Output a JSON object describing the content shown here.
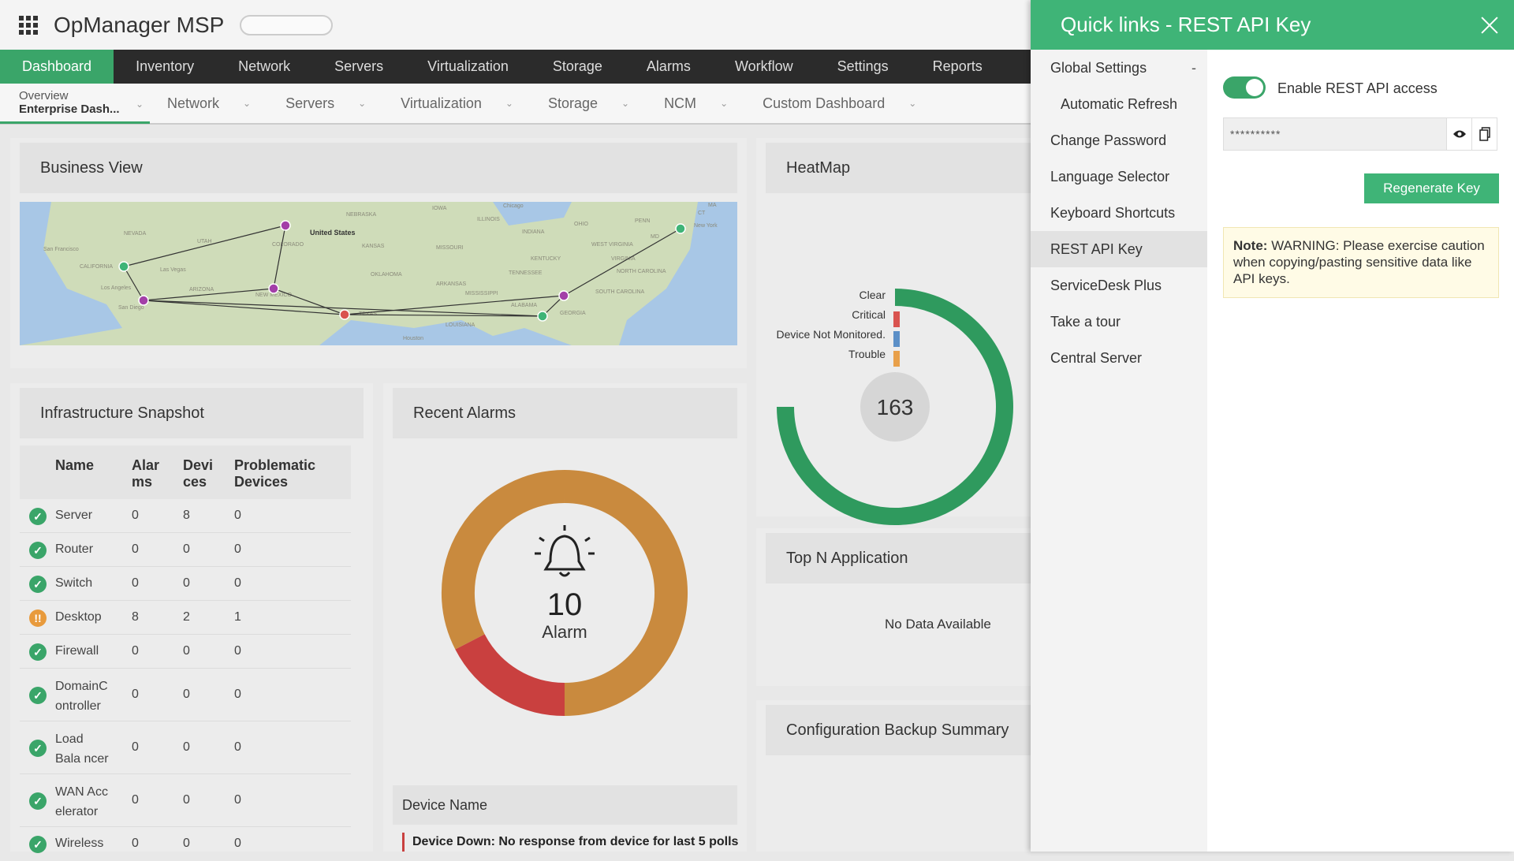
{
  "app": {
    "title": "OpManager MSP"
  },
  "mainnav": [
    "Dashboard",
    "Inventory",
    "Network",
    "Servers",
    "Virtualization",
    "Storage",
    "Alarms",
    "Workflow",
    "Settings",
    "Reports"
  ],
  "subnav": {
    "overview_line1": "Overview",
    "overview_line2": "Enterprise Dash...",
    "items": [
      "Network",
      "Servers",
      "Virtualization",
      "Storage",
      "NCM",
      "Custom Dashboard"
    ]
  },
  "business_view": {
    "title": "Business View",
    "map_labels": [
      "NEVADA",
      "UTAH",
      "NEBRASKA",
      "IOWA",
      "Chicago",
      "ILLINOIS",
      "INDIANA",
      "OHIO",
      "PENN",
      "MA",
      "CT",
      "New York",
      "MD",
      "WEST VIRGINIA",
      "VIRGINIA",
      "KENTUCKY",
      "NORTH CAROLINA",
      "TENNESSEE",
      "SOUTH CAROLINA",
      "GEORGIA",
      "ALABAMA",
      "MISSISSIPPI",
      "ARKANSAS",
      "OKLAHOMA",
      "KANSAS",
      "MISSOURI",
      "United States",
      "COLORADO",
      "NEW MEXICO",
      "ARIZONA",
      "CALIFORNIA",
      "San Francisco",
      "Los Angeles",
      "San Diego",
      "Las Vegas",
      "TEXAS",
      "LOUISIANA",
      "Houston"
    ]
  },
  "heatmap": {
    "title": "HeatMap",
    "legend": [
      "Clear",
      "Critical",
      "Device Not Monitored.",
      "Trouble"
    ],
    "total": "163",
    "colors": {
      "clear": "#2f9a5e",
      "critical": "#d9534f",
      "not_monitored": "#5b8fc7",
      "trouble": "#e8a04a"
    }
  },
  "infra": {
    "title": "Infrastructure Snapshot",
    "headers": {
      "name": "Name",
      "alarms": "Alar ms",
      "devices": "Devi ces",
      "problematic": "Problematic Devices"
    },
    "rows": [
      {
        "name": "Server",
        "alarms": "0",
        "devices": "8",
        "problematic": "0",
        "status": "ok"
      },
      {
        "name": "Router",
        "alarms": "0",
        "devices": "0",
        "problematic": "0",
        "status": "ok"
      },
      {
        "name": "Switch",
        "alarms": "0",
        "devices": "0",
        "problematic": "0",
        "status": "ok"
      },
      {
        "name": "Desktop",
        "alarms": "8",
        "devices": "2",
        "problematic": "1",
        "status": "warn"
      },
      {
        "name": "Firewall",
        "alarms": "0",
        "devices": "0",
        "problematic": "0",
        "status": "ok"
      },
      {
        "name": "DomainC ontroller",
        "alarms": "0",
        "devices": "0",
        "problematic": "0",
        "status": "ok"
      },
      {
        "name": "Load Bala ncer",
        "alarms": "0",
        "devices": "0",
        "problematic": "0",
        "status": "ok"
      },
      {
        "name": "WAN Acc elerator",
        "alarms": "0",
        "devices": "0",
        "problematic": "0",
        "status": "ok"
      },
      {
        "name": "Wireless",
        "alarms": "0",
        "devices": "0",
        "problematic": "0",
        "status": "ok"
      }
    ]
  },
  "recent_alarms": {
    "title": "Recent Alarms",
    "count": "10",
    "label": "Alarm",
    "device_name_header": "Device Name",
    "alarm_text": "Device Down: No response from device for last 5 polls",
    "colors": {
      "trouble": "#c98a3e",
      "critical": "#c9403f"
    }
  },
  "top_n": {
    "title": "Top N Application",
    "empty": "No Data Available"
  },
  "config_backup": {
    "title": "Configuration Backup Summary"
  },
  "drawer": {
    "title": "Quick links - REST API Key",
    "menu": [
      {
        "label": "Global Settings",
        "type": "group"
      },
      {
        "label": "Automatic Refresh",
        "type": "sub"
      },
      {
        "label": "Change Password",
        "type": "item"
      },
      {
        "label": "Language Selector",
        "type": "item"
      },
      {
        "label": "Keyboard Shortcuts",
        "type": "item"
      },
      {
        "label": "REST API Key",
        "type": "active"
      },
      {
        "label": "ServiceDesk Plus",
        "type": "item"
      },
      {
        "label": "Take a tour",
        "type": "item"
      },
      {
        "label": "Central Server",
        "type": "item"
      }
    ],
    "collapse_symbol": "-",
    "toggle_label": "Enable REST API access",
    "api_key_masked": "**********",
    "regenerate_label": "Regenerate Key",
    "note_title": "Note:",
    "note_text": "WARNING: Please exercise caution when copying/pasting sensitive data like API keys."
  }
}
